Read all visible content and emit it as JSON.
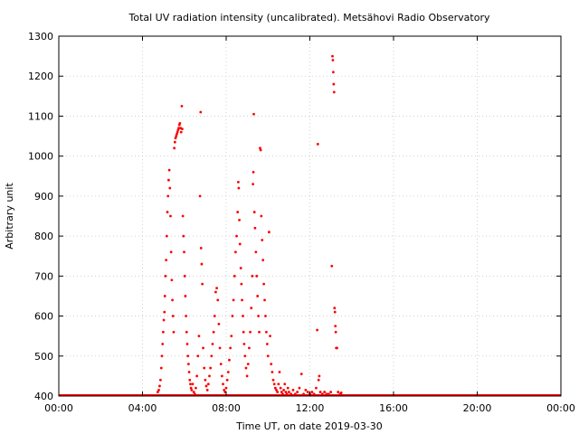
{
  "chart_data": {
    "type": "scatter",
    "title": "Total UV radiation intensity (uncalibrated). Metsähovi Radio Observatory",
    "xlabel": "Time UT, on date 2019-03-30",
    "ylabel": "Arbitrary unit",
    "xlim_hours": [
      0,
      24
    ],
    "ylim": [
      400,
      1300
    ],
    "x_ticks": [
      {
        "hours": 0,
        "label": "00:00"
      },
      {
        "hours": 4,
        "label": "04:00"
      },
      {
        "hours": 8,
        "label": "08:00"
      },
      {
        "hours": 12,
        "label": "12:00"
      },
      {
        "hours": 16,
        "label": "16:00"
      },
      {
        "hours": 20,
        "label": "20:00"
      },
      {
        "hours": 24,
        "label": "00:00"
      }
    ],
    "y_ticks": [
      400,
      500,
      600,
      700,
      800,
      900,
      1000,
      1100,
      1200,
      1300
    ],
    "grid": true,
    "marker_color": "#ff0000",
    "series": [
      {
        "baseline": {
          "y": 400,
          "x_from_hours": 0,
          "x_to_hours": 24
        },
        "points": [
          [
            4.73,
            410
          ],
          [
            4.78,
            415
          ],
          [
            4.82,
            425
          ],
          [
            4.86,
            440
          ],
          [
            4.9,
            470
          ],
          [
            4.93,
            500
          ],
          [
            4.96,
            530
          ],
          [
            4.99,
            560
          ],
          [
            5.02,
            590
          ],
          [
            5.05,
            610
          ],
          [
            5.07,
            650
          ],
          [
            5.1,
            700
          ],
          [
            5.13,
            740
          ],
          [
            5.16,
            800
          ],
          [
            5.19,
            860
          ],
          [
            5.22,
            900
          ],
          [
            5.25,
            940
          ],
          [
            5.28,
            965
          ],
          [
            5.31,
            920
          ],
          [
            5.34,
            850
          ],
          [
            5.37,
            760
          ],
          [
            5.4,
            690
          ],
          [
            5.43,
            640
          ],
          [
            5.46,
            600
          ],
          [
            5.49,
            560
          ],
          [
            5.52,
            1020
          ],
          [
            5.55,
            1035
          ],
          [
            5.58,
            1045
          ],
          [
            5.61,
            1050
          ],
          [
            5.64,
            1055
          ],
          [
            5.67,
            1060
          ],
          [
            5.7,
            1065
          ],
          [
            5.73,
            1070
          ],
          [
            5.76,
            1078
          ],
          [
            5.79,
            1082
          ],
          [
            5.82,
            1070
          ],
          [
            5.85,
            1060
          ],
          [
            5.88,
            1125
          ],
          [
            5.9,
            1068
          ],
          [
            5.93,
            850
          ],
          [
            5.96,
            800
          ],
          [
            5.99,
            760
          ],
          [
            6.02,
            700
          ],
          [
            6.05,
            650
          ],
          [
            6.08,
            600
          ],
          [
            6.11,
            560
          ],
          [
            6.14,
            530
          ],
          [
            6.17,
            500
          ],
          [
            6.2,
            480
          ],
          [
            6.23,
            460
          ],
          [
            6.26,
            440
          ],
          [
            6.29,
            430
          ],
          [
            6.32,
            420
          ],
          [
            6.35,
            415
          ],
          [
            6.4,
            430
          ],
          [
            6.45,
            410
          ],
          [
            6.5,
            405
          ],
          [
            6.55,
            420
          ],
          [
            6.6,
            450
          ],
          [
            6.65,
            500
          ],
          [
            6.7,
            550
          ],
          [
            6.75,
            900
          ],
          [
            6.78,
            1110
          ],
          [
            6.8,
            770
          ],
          [
            6.83,
            730
          ],
          [
            6.86,
            680
          ],
          [
            6.9,
            520
          ],
          [
            6.95,
            470
          ],
          [
            7.0,
            440
          ],
          [
            7.05,
            425
          ],
          [
            7.1,
            415
          ],
          [
            7.15,
            430
          ],
          [
            7.2,
            450
          ],
          [
            7.25,
            470
          ],
          [
            7.3,
            500
          ],
          [
            7.35,
            530
          ],
          [
            7.4,
            560
          ],
          [
            7.45,
            600
          ],
          [
            7.5,
            660
          ],
          [
            7.55,
            670
          ],
          [
            7.6,
            640
          ],
          [
            7.65,
            580
          ],
          [
            7.7,
            520
          ],
          [
            7.75,
            480
          ],
          [
            7.8,
            450
          ],
          [
            7.85,
            430
          ],
          [
            7.9,
            415
          ],
          [
            7.95,
            410
          ],
          [
            8.0,
            420
          ],
          [
            8.05,
            440
          ],
          [
            8.1,
            460
          ],
          [
            8.15,
            490
          ],
          [
            8.2,
            520
          ],
          [
            8.25,
            550
          ],
          [
            8.3,
            600
          ],
          [
            8.35,
            640
          ],
          [
            8.4,
            700
          ],
          [
            8.45,
            760
          ],
          [
            8.5,
            800
          ],
          [
            8.55,
            860
          ],
          [
            8.58,
            935
          ],
          [
            8.6,
            920
          ],
          [
            8.63,
            840
          ],
          [
            8.66,
            780
          ],
          [
            8.7,
            720
          ],
          [
            8.73,
            680
          ],
          [
            8.76,
            640
          ],
          [
            8.8,
            600
          ],
          [
            8.83,
            560
          ],
          [
            8.86,
            530
          ],
          [
            8.9,
            500
          ],
          [
            8.95,
            470
          ],
          [
            9.0,
            450
          ],
          [
            9.05,
            480
          ],
          [
            9.1,
            520
          ],
          [
            9.15,
            560
          ],
          [
            9.2,
            620
          ],
          [
            9.25,
            700
          ],
          [
            9.28,
            930
          ],
          [
            9.3,
            960
          ],
          [
            9.32,
            1105
          ],
          [
            9.35,
            860
          ],
          [
            9.38,
            820
          ],
          [
            9.42,
            760
          ],
          [
            9.46,
            700
          ],
          [
            9.5,
            650
          ],
          [
            9.54,
            600
          ],
          [
            9.58,
            560
          ],
          [
            9.62,
            1020
          ],
          [
            9.65,
            1015
          ],
          [
            9.68,
            850
          ],
          [
            9.72,
            790
          ],
          [
            9.76,
            740
          ],
          [
            9.8,
            680
          ],
          [
            9.84,
            640
          ],
          [
            9.88,
            600
          ],
          [
            9.92,
            560
          ],
          [
            9.96,
            530
          ],
          [
            10.0,
            500
          ],
          [
            10.05,
            810
          ],
          [
            10.1,
            550
          ],
          [
            10.15,
            480
          ],
          [
            10.2,
            460
          ],
          [
            10.25,
            440
          ],
          [
            10.3,
            430
          ],
          [
            10.35,
            420
          ],
          [
            10.4,
            415
          ],
          [
            10.45,
            410
          ],
          [
            10.5,
            430
          ],
          [
            10.55,
            460
          ],
          [
            10.6,
            420
          ],
          [
            10.65,
            410
          ],
          [
            10.7,
            405
          ],
          [
            10.75,
            415
          ],
          [
            10.8,
            430
          ],
          [
            10.85,
            410
          ],
          [
            10.9,
            405
          ],
          [
            10.95,
            420
          ],
          [
            11.0,
            410
          ],
          [
            11.1,
            405
          ],
          [
            11.2,
            415
          ],
          [
            11.3,
            405
          ],
          [
            11.4,
            410
          ],
          [
            11.5,
            420
          ],
          [
            11.6,
            455
          ],
          [
            11.7,
            405
          ],
          [
            11.8,
            415
          ],
          [
            11.9,
            410
          ],
          [
            12.0,
            405
          ],
          [
            12.1,
            410
          ],
          [
            12.2,
            405
          ],
          [
            12.3,
            420
          ],
          [
            12.35,
            565
          ],
          [
            12.38,
            1030
          ],
          [
            12.42,
            440
          ],
          [
            12.45,
            450
          ],
          [
            12.5,
            410
          ],
          [
            12.6,
            405
          ],
          [
            12.7,
            410
          ],
          [
            12.8,
            405
          ],
          [
            12.9,
            405
          ],
          [
            13.0,
            410
          ],
          [
            13.05,
            725
          ],
          [
            13.08,
            1250
          ],
          [
            13.1,
            1240
          ],
          [
            13.12,
            1210
          ],
          [
            13.14,
            1180
          ],
          [
            13.16,
            1160
          ],
          [
            13.18,
            620
          ],
          [
            13.2,
            610
          ],
          [
            13.22,
            575
          ],
          [
            13.24,
            560
          ],
          [
            13.26,
            520
          ],
          [
            13.3,
            520
          ],
          [
            13.35,
            410
          ],
          [
            13.45,
            405
          ],
          [
            13.5,
            408
          ]
        ]
      }
    ]
  }
}
